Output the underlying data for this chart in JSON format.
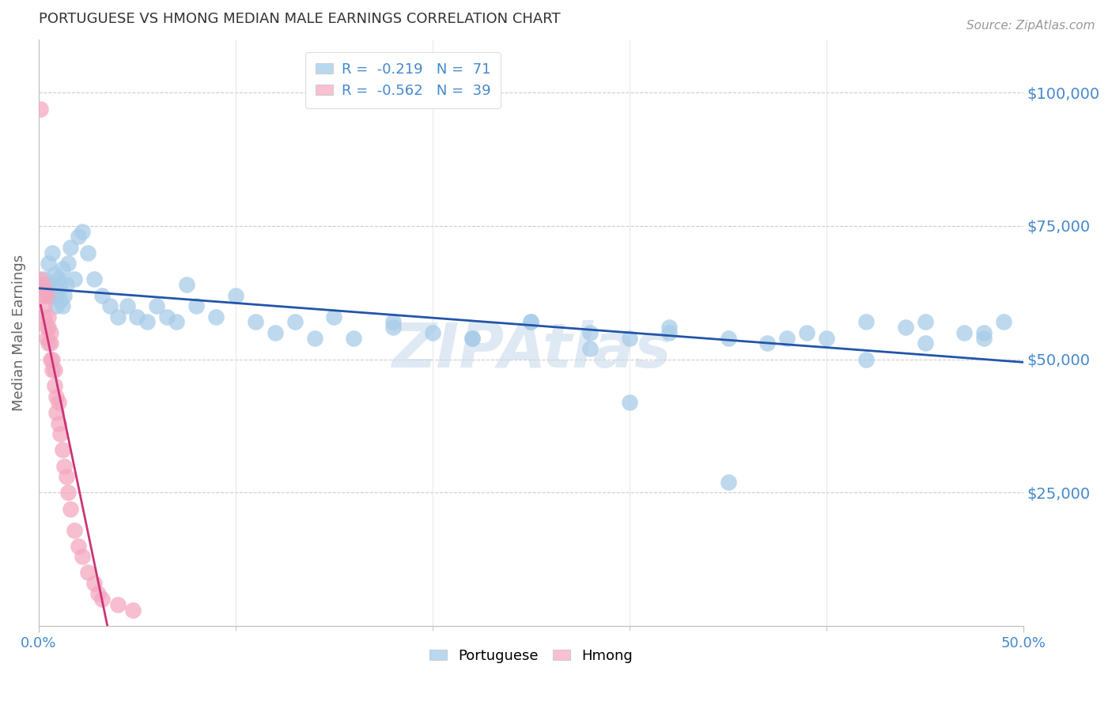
{
  "title": "PORTUGUESE VS HMONG MEDIAN MALE EARNINGS CORRELATION CHART",
  "source": "Source: ZipAtlas.com",
  "ylabel": "Median Male Earnings",
  "watermark": "ZIPAtlas",
  "xlim": [
    0.0,
    0.5
  ],
  "ylim": [
    0,
    110000
  ],
  "yticks": [
    0,
    25000,
    50000,
    75000,
    100000
  ],
  "ytick_labels": [
    "",
    "$25,000",
    "$50,000",
    "$75,000",
    "$100,000"
  ],
  "xtick_vals": [
    0.0,
    0.5
  ],
  "xtick_labels": [
    "0.0%",
    "50.0%"
  ],
  "xtick_minor_vals": [
    0.1,
    0.2,
    0.3,
    0.4
  ],
  "portuguese_R": -0.219,
  "portuguese_N": 71,
  "hmong_R": -0.562,
  "hmong_N": 39,
  "blue_dot_color": "#a8cce8",
  "blue_line_color": "#2255aa",
  "pink_dot_color": "#f4a8c0",
  "pink_line_color": "#cc3377",
  "legend_blue_face": "#b8d8f0",
  "legend_pink_face": "#f8c0d0",
  "grid_color": "#cccccc",
  "background_color": "#ffffff",
  "title_color": "#333333",
  "axis_label_color": "#666666",
  "right_tick_color": "#4488cc",
  "legend_text_color": "#4488cc",
  "portuguese_x": [
    0.003,
    0.004,
    0.005,
    0.006,
    0.007,
    0.007,
    0.008,
    0.009,
    0.009,
    0.01,
    0.01,
    0.011,
    0.011,
    0.012,
    0.012,
    0.013,
    0.014,
    0.015,
    0.016,
    0.018,
    0.02,
    0.022,
    0.025,
    0.028,
    0.032,
    0.036,
    0.04,
    0.045,
    0.05,
    0.055,
    0.06,
    0.065,
    0.07,
    0.075,
    0.08,
    0.09,
    0.1,
    0.11,
    0.12,
    0.13,
    0.14,
    0.15,
    0.16,
    0.18,
    0.2,
    0.22,
    0.25,
    0.28,
    0.3,
    0.32,
    0.35,
    0.37,
    0.39,
    0.4,
    0.42,
    0.44,
    0.45,
    0.47,
    0.48,
    0.49,
    0.28,
    0.32,
    0.38,
    0.42,
    0.45,
    0.48,
    0.35,
    0.25,
    0.18,
    0.22,
    0.3
  ],
  "portuguese_y": [
    65000,
    63000,
    68000,
    62000,
    64000,
    70000,
    66000,
    62000,
    60000,
    65000,
    63000,
    61000,
    64000,
    60000,
    67000,
    62000,
    64000,
    68000,
    71000,
    65000,
    73000,
    74000,
    70000,
    65000,
    62000,
    60000,
    58000,
    60000,
    58000,
    57000,
    60000,
    58000,
    57000,
    64000,
    60000,
    58000,
    62000,
    57000,
    55000,
    57000,
    54000,
    58000,
    54000,
    57000,
    55000,
    54000,
    57000,
    55000,
    54000,
    56000,
    54000,
    53000,
    55000,
    54000,
    57000,
    56000,
    53000,
    55000,
    54000,
    57000,
    52000,
    55000,
    54000,
    50000,
    57000,
    55000,
    27000,
    57000,
    56000,
    54000,
    42000
  ],
  "hmong_x": [
    0.001,
    0.001,
    0.002,
    0.002,
    0.003,
    0.003,
    0.003,
    0.004,
    0.004,
    0.004,
    0.005,
    0.005,
    0.005,
    0.006,
    0.006,
    0.006,
    0.007,
    0.007,
    0.008,
    0.008,
    0.009,
    0.009,
    0.01,
    0.01,
    0.011,
    0.012,
    0.013,
    0.014,
    0.015,
    0.016,
    0.018,
    0.02,
    0.022,
    0.025,
    0.028,
    0.03,
    0.032,
    0.04,
    0.048
  ],
  "hmong_y": [
    97000,
    65000,
    64000,
    62000,
    63000,
    60000,
    58000,
    62000,
    56000,
    54000,
    58000,
    56000,
    53000,
    55000,
    53000,
    50000,
    50000,
    48000,
    48000,
    45000,
    43000,
    40000,
    42000,
    38000,
    36000,
    33000,
    30000,
    28000,
    25000,
    22000,
    18000,
    15000,
    13000,
    10000,
    8000,
    6000,
    5000,
    4000,
    3000
  ]
}
